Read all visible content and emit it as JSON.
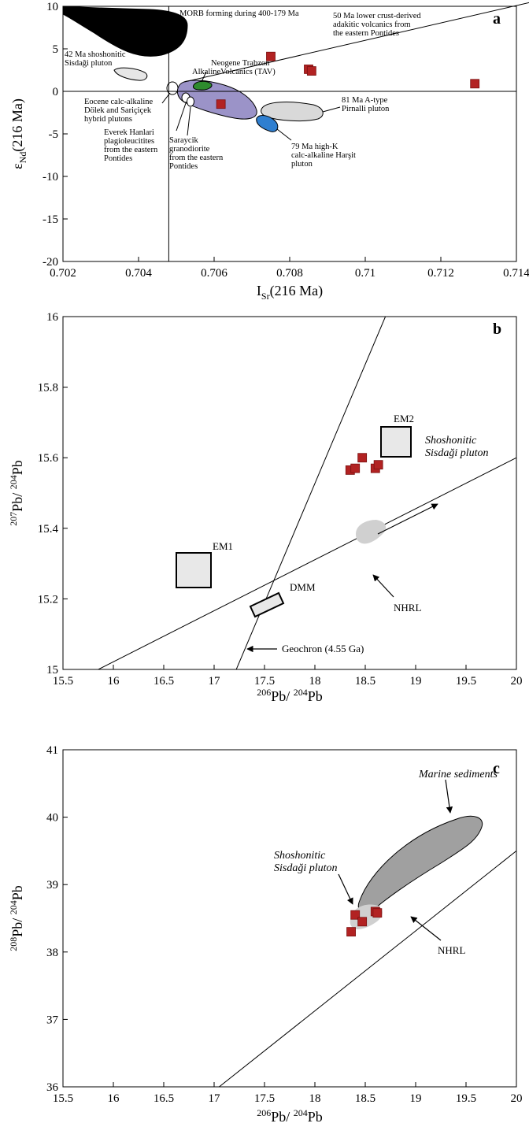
{
  "chart_data": [
    {
      "type": "scatter",
      "panel": "a",
      "xlabel": {
        "main": "I",
        "sub": "Sr",
        "rest": "(216 Ma)"
      },
      "ylabel": {
        "main": "ε",
        "sub": "Nd",
        "rest": "(216 Ma)"
      },
      "xlim": [
        0.702,
        0.714
      ],
      "ylim": [
        -20,
        10
      ],
      "x_ticks": [
        0.702,
        0.704,
        0.706,
        0.708,
        0.71,
        0.712,
        0.714
      ],
      "x_tick_labels": [
        "0.702",
        "0.704",
        "0.706",
        "0.708",
        "0.71",
        "0.712",
        "0.714"
      ],
      "y_ticks": [
        -20,
        -15,
        -10,
        -5,
        0,
        5,
        10
      ],
      "y_tick_labels": [
        "-20",
        "-15",
        "-10",
        "-5",
        "0",
        "5",
        "10"
      ],
      "reference_lines": {
        "bse_sr": 0.7048,
        "bse_nd": 0
      },
      "samples": {
        "x": [
          0.7075,
          0.7085,
          0.70858,
          0.7129,
          0.70618
        ],
        "y": [
          4.1,
          2.6,
          2.4,
          0.9,
          -1.5
        ]
      },
      "fields": [
        {
          "name": "morb",
          "label": "MORB forming during 400-179 Ma",
          "color": "#000000"
        },
        {
          "name": "adakitic",
          "label_lines": [
            "50 Ma lower crust-derived",
            "adakitic volcanics from",
            "the eastern Pontides"
          ]
        },
        {
          "name": "sisdagi",
          "label_lines": [
            "42 Ma shoshonitic",
            "Sisdaği pluton"
          ],
          "color": "#e6e6e6"
        },
        {
          "name": "trabzon",
          "label_lines": [
            "Neogene Trabzon",
            "AlkalineVolcanics (TAV)"
          ],
          "color": "#2e8b2e"
        },
        {
          "name": "eocene",
          "label_lines": [
            "Eocene calc-alkaline",
            "Dölek and Sariçiçek",
            "hybrid plutons"
          ]
        },
        {
          "name": "everek",
          "label_lines": [
            "Everek Hanlari",
            "plagioleucitites",
            "from the eastern",
            "Pontides"
          ]
        },
        {
          "name": "saraycik",
          "label_lines": [
            "Saraycik",
            "granodiorite",
            "from the eastern",
            "Pontides"
          ],
          "color": "#9b93c8"
        },
        {
          "name": "pirnalli",
          "label_lines": [
            "81 Ma A-type",
            "Pirnalli pluton"
          ],
          "color": "#d9d9d9"
        },
        {
          "name": "harsit",
          "label_lines": [
            "79 Ma high-K",
            "calc-alkaline Harşit",
            "pluton"
          ],
          "color": "#2f7fd0"
        }
      ],
      "panel_label": "a"
    },
    {
      "type": "scatter",
      "panel": "b",
      "xlabel": {
        "sup1": "206",
        "main1": "Pb/ ",
        "sup2": "204",
        "main2": "Pb"
      },
      "ylabel": {
        "sup1": "207",
        "main1": "Pb/ ",
        "sup2": "204",
        "main2": "Pb"
      },
      "xlim": [
        15.5,
        20
      ],
      "ylim": [
        15,
        16
      ],
      "x_ticks": [
        15.5,
        16,
        16.5,
        17,
        17.5,
        18,
        18.5,
        19,
        19.5,
        20
      ],
      "x_tick_labels": [
        "15.5",
        "16",
        "16.5",
        "17",
        "17.5",
        "18",
        "18.5",
        "19",
        "19.5",
        "20"
      ],
      "y_ticks": [
        15,
        15.2,
        15.4,
        15.6,
        15.8,
        16
      ],
      "y_tick_labels": [
        "15",
        "15.2",
        "15.4",
        "15.6",
        "15.8",
        "16"
      ],
      "samples": {
        "x": [
          18.35,
          18.4,
          18.47,
          18.6,
          18.63
        ],
        "y": [
          15.565,
          15.57,
          15.6,
          15.57,
          15.58
        ]
      },
      "reservoirs": [
        {
          "name": "EM1",
          "label": "EM1"
        },
        {
          "name": "DMM",
          "label": "DMM"
        },
        {
          "name": "EM2",
          "label": "EM2"
        }
      ],
      "lines": [
        {
          "name": "nhrl",
          "label": "NHRL",
          "from": [
            15.85,
            15
          ],
          "to": [
            20,
            15.6
          ]
        },
        {
          "name": "geochron",
          "label": "Geochron (4.55 Ga)",
          "from": [
            17.22,
            15
          ],
          "to": [
            18.7,
            16
          ]
        }
      ],
      "field_label_lines": [
        "Shoshonitic",
        "Sisdaği pluton"
      ],
      "panel_label": "b"
    },
    {
      "type": "scatter",
      "panel": "c",
      "xlabel": {
        "sup1": "206",
        "main1": "Pb/ ",
        "sup2": "204",
        "main2": "Pb"
      },
      "ylabel": {
        "sup1": "208",
        "main1": "Pb/ ",
        "sup2": "204",
        "main2": "Pb"
      },
      "xlim": [
        15.5,
        20
      ],
      "ylim": [
        36,
        41
      ],
      "x_ticks": [
        15.5,
        16,
        16.5,
        17,
        17.5,
        18,
        18.5,
        19,
        19.5,
        20
      ],
      "x_tick_labels": [
        "15.5",
        "16",
        "16.5",
        "17",
        "17.5",
        "18",
        "18.5",
        "19",
        "19.5",
        "20"
      ],
      "y_ticks": [
        36,
        37,
        38,
        39,
        40,
        41
      ],
      "y_tick_labels": [
        "36",
        "37",
        "38",
        "39",
        "40",
        "41"
      ],
      "samples": {
        "x": [
          18.36,
          18.4,
          18.47,
          18.6,
          18.62
        ],
        "y": [
          38.3,
          38.55,
          38.45,
          38.6,
          38.58
        ]
      },
      "lines": [
        {
          "name": "nhrl",
          "label": "NHRL",
          "from": [
            17.05,
            36
          ],
          "to": [
            20,
            39.5
          ]
        }
      ],
      "marine_label": "Marine sediments",
      "field_label_lines": [
        "Shoshonitic",
        "Sisdaği pluton"
      ],
      "panel_label": "c"
    }
  ]
}
